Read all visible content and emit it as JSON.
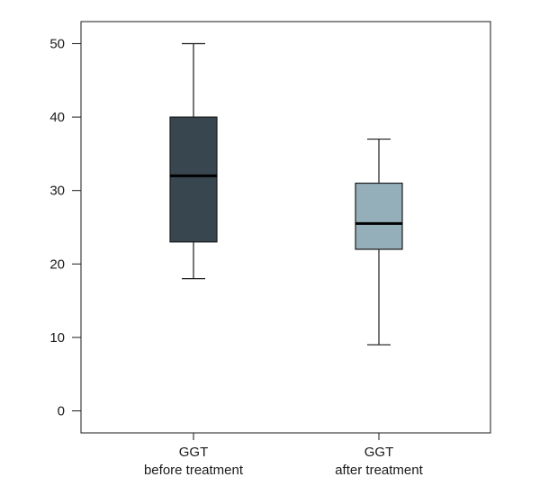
{
  "chart_data": {
    "type": "box",
    "title": "",
    "xlabel": "",
    "ylabel": "",
    "ylim": [
      -3,
      53
    ],
    "yticks": [
      0,
      10,
      20,
      30,
      40,
      50
    ],
    "grid": false,
    "categories": [
      {
        "line1": "GGT",
        "line2": "before treatment"
      },
      {
        "line1": "GGT",
        "line2": "after treatment"
      }
    ],
    "boxes": [
      {
        "whisker_low": 18,
        "q1": 23,
        "median": 32,
        "q3": 40,
        "whisker_high": 50,
        "fill": "#37464f"
      },
      {
        "whisker_low": 9,
        "q1": 22,
        "median": 25.5,
        "q3": 31,
        "whisker_high": 37,
        "fill": "#95afba"
      }
    ]
  }
}
